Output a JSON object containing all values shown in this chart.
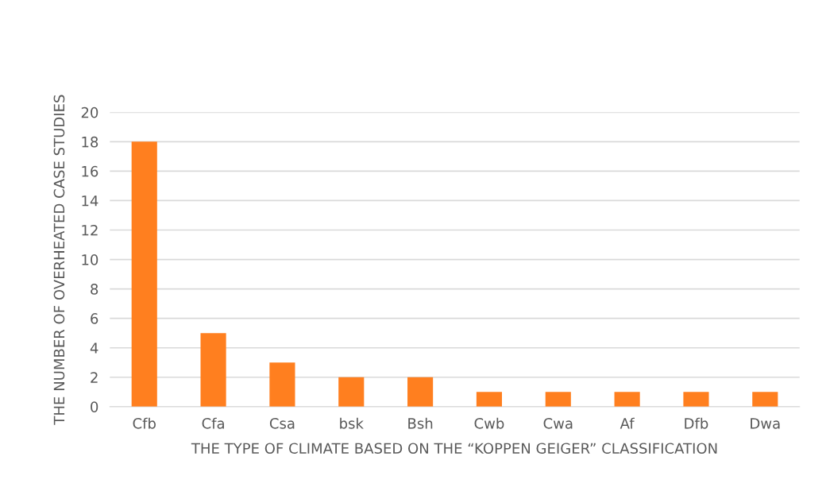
{
  "chart_data": {
    "type": "bar",
    "xlabel": "THE TYPE OF CLIMATE BASED ON THE “KOPPEN GEIGER” CLASSIFICATION",
    "ylabel": "THE NUMBER OF OVERHEATED CASE STUDIES",
    "categories": [
      "Cfb",
      "Cfa",
      "Csa",
      "bsk",
      "Bsh",
      "Cwb",
      "Cwa",
      "Af",
      "Dfb",
      "Dwa"
    ],
    "values": [
      18,
      5,
      3,
      2,
      2,
      1,
      1,
      1,
      1,
      1
    ],
    "color": "#ff7f1f",
    "ylim": [
      0,
      20
    ],
    "yticks": [
      0,
      2,
      4,
      6,
      8,
      10,
      12,
      14,
      16,
      18,
      20
    ],
    "grid": "y"
  }
}
